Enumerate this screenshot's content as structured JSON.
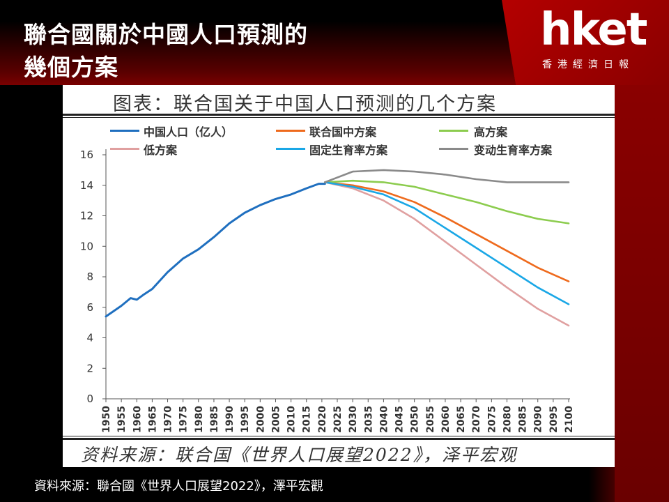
{
  "header": {
    "title_line1": "聯合國關於中國人口預測的",
    "title_line2": "幾個方案"
  },
  "logo": {
    "text": "hket",
    "subtitle": "香港經濟日報"
  },
  "panel": {
    "title": "图表：联合国关于中国人口预测的几个方案",
    "source": "资料来源：联合国《世界人口展望2022》，泽平宏观"
  },
  "caption": "資料來源：聯合國《世界人口展望2022》，澤平宏觀",
  "colors": {
    "china": "#1f6fbf",
    "medium": "#ee6a1d",
    "high": "#8ccc4e",
    "low": "#e0a0a0",
    "constant": "#1aa7e6",
    "instant": "#8a8a8a",
    "brand_red": "#b40000"
  },
  "chart_data": {
    "type": "line",
    "title": "图表：联合国关于中国人口预测的几个方案",
    "ylim": [
      0,
      16
    ],
    "yticks": [
      0,
      2,
      4,
      6,
      8,
      10,
      12,
      14,
      16
    ],
    "xlim": [
      1950,
      2100
    ],
    "xticks": [
      1950,
      1955,
      1960,
      1965,
      1970,
      1975,
      1980,
      1985,
      1990,
      1995,
      2000,
      2005,
      2010,
      2015,
      2020,
      2025,
      2030,
      2035,
      2040,
      2045,
      2050,
      2055,
      2060,
      2065,
      2070,
      2075,
      2080,
      2085,
      2090,
      2095,
      2100
    ],
    "legend_position": "top",
    "series": [
      {
        "name": "中国人口（亿人）",
        "color": "#1f6fbf",
        "x": [
          1950,
          1955,
          1958,
          1960,
          1962,
          1965,
          1970,
          1975,
          1980,
          1985,
          1990,
          1995,
          2000,
          2005,
          2010,
          2015,
          2019,
          2021
        ],
        "y": [
          5.4,
          6.1,
          6.6,
          6.5,
          6.8,
          7.2,
          8.3,
          9.2,
          9.8,
          10.6,
          11.5,
          12.2,
          12.7,
          13.1,
          13.4,
          13.8,
          14.1,
          14.1
        ]
      },
      {
        "name": "联合国中方案",
        "color": "#ee6a1d",
        "x": [
          2021,
          2030,
          2040,
          2050,
          2060,
          2070,
          2080,
          2090,
          2100
        ],
        "y": [
          14.2,
          14.0,
          13.6,
          12.9,
          11.9,
          10.8,
          9.7,
          8.6,
          7.7
        ]
      },
      {
        "name": "高方案",
        "color": "#8ccc4e",
        "x": [
          2021,
          2030,
          2040,
          2050,
          2060,
          2070,
          2080,
          2090,
          2100
        ],
        "y": [
          14.2,
          14.3,
          14.2,
          13.9,
          13.4,
          12.9,
          12.3,
          11.8,
          11.5
        ]
      },
      {
        "name": "低方案",
        "color": "#e0a0a0",
        "x": [
          2021,
          2030,
          2040,
          2050,
          2060,
          2070,
          2080,
          2090,
          2100
        ],
        "y": [
          14.2,
          13.8,
          13.0,
          11.8,
          10.3,
          8.8,
          7.3,
          5.9,
          4.8
        ]
      },
      {
        "name": "固定生育率方案",
        "color": "#1aa7e6",
        "x": [
          2021,
          2030,
          2040,
          2050,
          2060,
          2070,
          2080,
          2090,
          2100
        ],
        "y": [
          14.2,
          13.9,
          13.4,
          12.5,
          11.2,
          9.9,
          8.6,
          7.3,
          6.2
        ]
      },
      {
        "name": "变动生育率方案",
        "color": "#8a8a8a",
        "x": [
          2021,
          2030,
          2040,
          2050,
          2060,
          2070,
          2080,
          2090,
          2100
        ],
        "y": [
          14.2,
          14.9,
          15.0,
          14.9,
          14.7,
          14.4,
          14.2,
          14.2,
          14.2
        ]
      }
    ]
  }
}
